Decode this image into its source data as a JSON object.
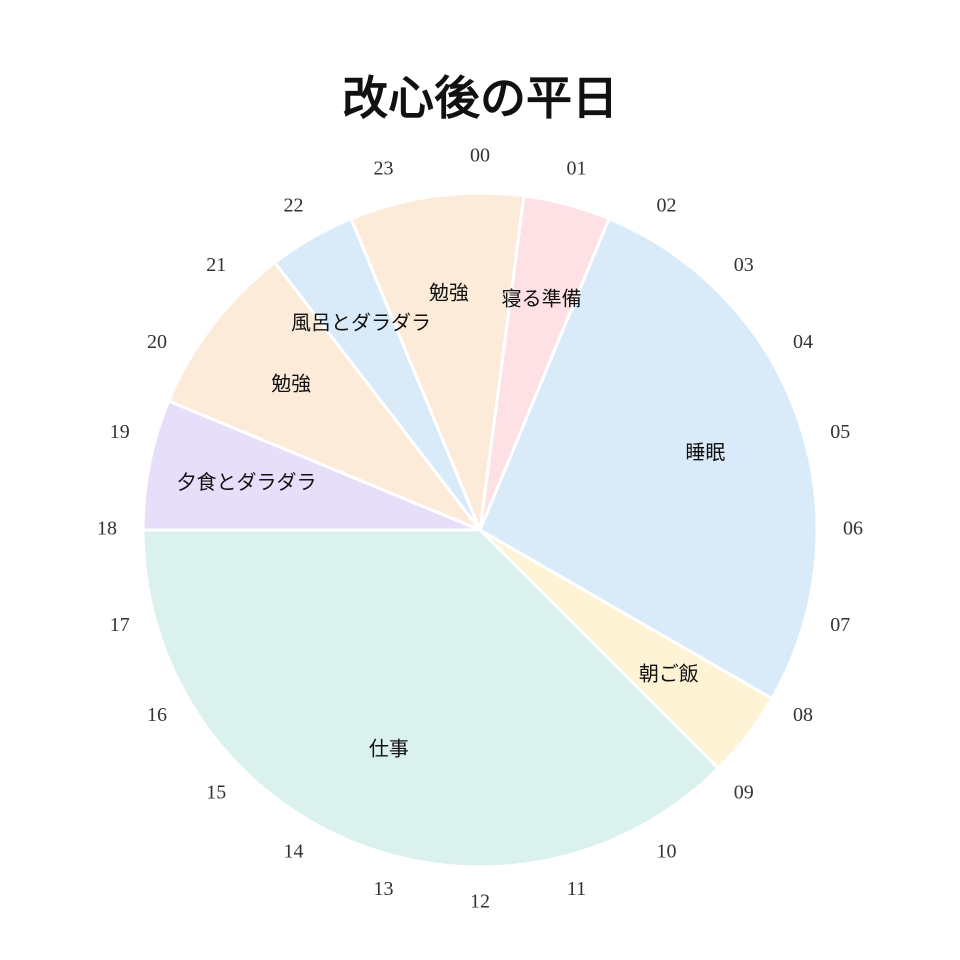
{
  "chart_data": {
    "type": "pie",
    "title": "改心後の平日",
    "slices": [
      {
        "label": "睡眠",
        "start": 1.5,
        "end": 8.0,
        "color": "#d9eaf9"
      },
      {
        "label": "朝ご飯",
        "start": 8.0,
        "end": 9.0,
        "color": "#fff3d6"
      },
      {
        "label": "仕事",
        "start": 9.0,
        "end": 18.0,
        "color": "#dbf1ee"
      },
      {
        "label": "夕食とダラダラ",
        "start": 18.0,
        "end": 19.5,
        "color": "#e7def9"
      },
      {
        "label": "勉強",
        "start": 19.5,
        "end": 21.5,
        "color": "#fdebd9"
      },
      {
        "label": "風呂とダラダラ",
        "start": 21.5,
        "end": 22.5,
        "color": "#d9eaf9"
      },
      {
        "label": "勉強",
        "start": 22.5,
        "end": 24.5,
        "color": "#fdebd9"
      },
      {
        "label": "寝る準備",
        "start": 24.5,
        "end": 25.5,
        "color": "#fde1e5"
      }
    ],
    "hour_labels": [
      "00",
      "01",
      "02",
      "03",
      "04",
      "05",
      "06",
      "07",
      "08",
      "09",
      "10",
      "11",
      "12",
      "13",
      "14",
      "15",
      "16",
      "17",
      "18",
      "19",
      "20",
      "21",
      "22",
      "23"
    ],
    "clock_hours": 24,
    "zero_position": "top",
    "direction": "clockwise"
  }
}
